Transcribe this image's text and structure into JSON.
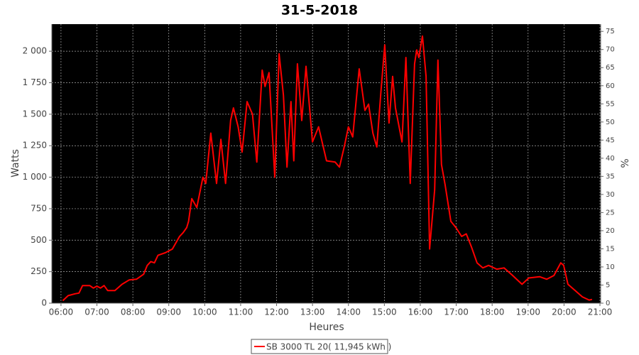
{
  "chart_data": {
    "type": "line",
    "title": "31-5-2018",
    "x_label": "Heures",
    "y_label": "Watts",
    "y2_label": "%",
    "xlim": [
      5.745,
      21.02
    ],
    "xticks": [
      {
        "value": 6,
        "label": "06:00"
      },
      {
        "value": 7,
        "label": "07:00"
      },
      {
        "value": 8,
        "label": "08:00"
      },
      {
        "value": 9,
        "label": "09:00"
      },
      {
        "value": 10,
        "label": "10:00"
      },
      {
        "value": 11,
        "label": "11:00"
      },
      {
        "value": 12,
        "label": "12:00"
      },
      {
        "value": 13,
        "label": "13:00"
      },
      {
        "value": 14,
        "label": "14:00"
      },
      {
        "value": 15,
        "label": "15:00"
      },
      {
        "value": 16,
        "label": "16:00"
      },
      {
        "value": 17,
        "label": "17:00"
      },
      {
        "value": 18,
        "label": "18:00"
      },
      {
        "value": 19,
        "label": "19:00"
      },
      {
        "value": 20,
        "label": "20:00"
      },
      {
        "value": 21,
        "label": "21:00"
      }
    ],
    "ylim": [
      0,
      2215
    ],
    "yticks": [
      0,
      250,
      500,
      750,
      {
        "value": 1000,
        "label": "1 000"
      },
      {
        "value": 1250,
        "label": "1 250"
      },
      {
        "value": 1500,
        "label": "1 500"
      },
      {
        "value": 1750,
        "label": "1 750"
      },
      {
        "value": 2000,
        "label": "2 000"
      }
    ],
    "y2lim": [
      0,
      77
    ],
    "y2ticks": [
      0,
      5,
      10,
      15,
      20,
      25,
      30,
      35,
      40,
      45,
      50,
      55,
      60,
      65,
      70,
      75
    ],
    "grid": true,
    "legend": "bottom",
    "series": [
      {
        "name": "SB 3000 TL 20( 11,945 kWh )",
        "color": "#ff0000",
        "x": [
          6.05,
          6.2,
          6.4,
          6.5,
          6.6,
          6.8,
          6.9,
          7.0,
          7.1,
          7.2,
          7.3,
          7.5,
          7.7,
          7.9,
          8.1,
          8.3,
          8.4,
          8.5,
          8.6,
          8.7,
          8.9,
          9.1,
          9.3,
          9.4,
          9.5,
          9.55,
          9.64,
          9.78,
          9.95,
          10.03,
          10.17,
          10.33,
          10.45,
          10.58,
          10.72,
          10.8,
          10.93,
          11.04,
          11.18,
          11.33,
          11.45,
          11.6,
          11.68,
          11.79,
          11.95,
          12.07,
          12.19,
          12.29,
          12.4,
          12.48,
          12.58,
          12.7,
          12.82,
          13.0,
          13.17,
          13.39,
          13.63,
          13.75,
          13.89,
          14.0,
          14.12,
          14.3,
          14.46,
          14.56,
          14.68,
          14.79,
          14.91,
          15.01,
          15.13,
          15.23,
          15.31,
          15.49,
          15.6,
          15.72,
          15.84,
          15.9,
          15.96,
          16.06,
          16.16,
          16.26,
          16.4,
          16.49,
          16.59,
          16.69,
          16.85,
          16.99,
          17.15,
          17.28,
          17.42,
          17.58,
          17.74,
          17.9,
          18.13,
          18.33,
          18.57,
          18.83,
          19.02,
          19.32,
          19.52,
          19.72,
          19.91,
          19.99,
          20.11,
          20.31,
          20.51,
          20.7,
          20.78
        ],
        "values": [
          20,
          60,
          75,
          80,
          140,
          140,
          120,
          135,
          120,
          140,
          100,
          100,
          150,
          185,
          190,
          230,
          300,
          330,
          320,
          380,
          400,
          430,
          530,
          560,
          600,
          650,
          830,
          760,
          1000,
          950,
          1350,
          950,
          1300,
          950,
          1450,
          1550,
          1400,
          1200,
          1600,
          1500,
          1120,
          1850,
          1720,
          1830,
          1000,
          1980,
          1650,
          1080,
          1600,
          1130,
          1900,
          1450,
          1880,
          1280,
          1400,
          1130,
          1120,
          1080,
          1250,
          1400,
          1320,
          1860,
          1530,
          1580,
          1350,
          1240,
          1700,
          2050,
          1430,
          1800,
          1550,
          1280,
          1950,
          950,
          1900,
          2010,
          1950,
          2120,
          1800,
          430,
          900,
          1930,
          1100,
          940,
          650,
          600,
          530,
          550,
          450,
          320,
          280,
          300,
          270,
          280,
          220,
          150,
          200,
          210,
          190,
          220,
          320,
          300,
          150,
          100,
          50,
          25,
          30
        ]
      }
    ]
  }
}
